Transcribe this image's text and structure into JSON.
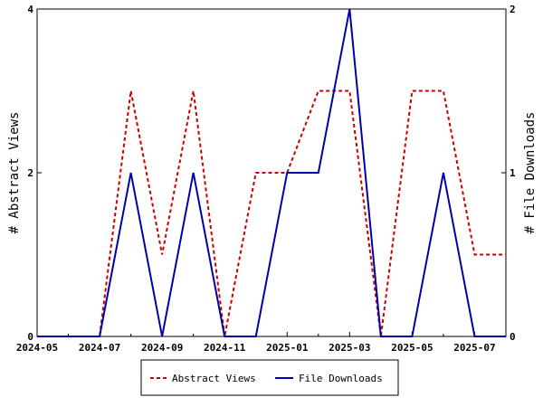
{
  "chart_data": {
    "type": "line",
    "title": "",
    "x": [
      "2024-05",
      "2024-06",
      "2024-07",
      "2024-08",
      "2024-09",
      "2024-10",
      "2024-11",
      "2024-12",
      "2025-01",
      "2025-02",
      "2025-03",
      "2025-04",
      "2025-05",
      "2025-06",
      "2025-07",
      "2025-08"
    ],
    "x_tick_labels": [
      "2024-05",
      "2024-07",
      "2024-09",
      "2024-11",
      "2025-01",
      "2025-03",
      "2025-05",
      "2025-07"
    ],
    "y_left": {
      "label": "# Abstract Views",
      "range": [
        0,
        4
      ],
      "ticks": [
        "0",
        "2",
        "4"
      ]
    },
    "y_right": {
      "label": "# File Downloads",
      "range": [
        0,
        2
      ],
      "ticks": [
        "0",
        "1",
        "2"
      ]
    },
    "series": [
      {
        "name": "Abstract Views",
        "axis": "left",
        "color": "#cc0000",
        "style": "dashed",
        "values": [
          0,
          0,
          0,
          3,
          1,
          3,
          0,
          2,
          2,
          3,
          3,
          0,
          3,
          3,
          1,
          1
        ]
      },
      {
        "name": "File Downloads",
        "axis": "right",
        "color": "#0000aa",
        "style": "solid",
        "values": [
          0,
          0,
          0,
          1,
          0,
          1,
          0,
          0,
          1,
          1,
          2,
          0,
          0,
          1,
          0,
          0
        ]
      }
    ],
    "legend_position": "bottom-center",
    "grid": false
  }
}
